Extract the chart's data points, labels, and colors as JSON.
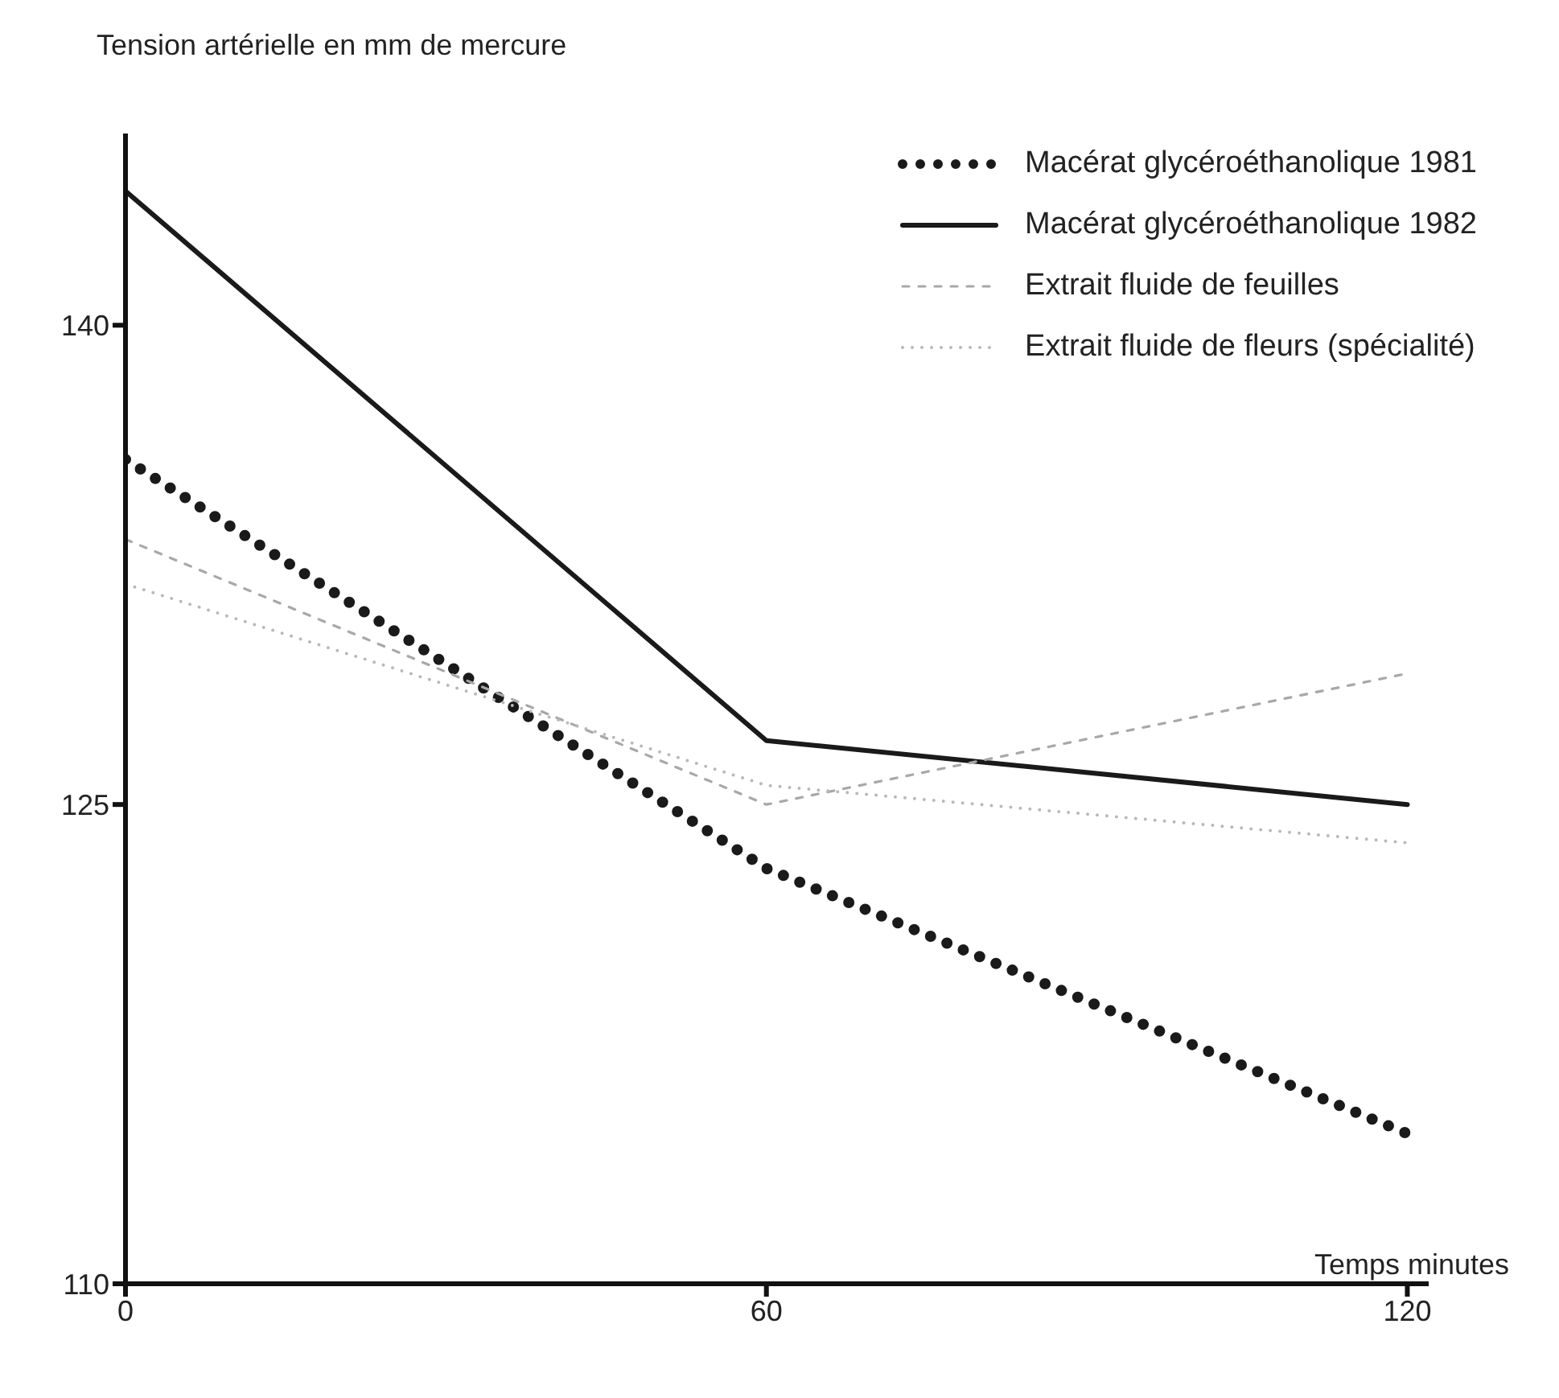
{
  "chart_data": {
    "type": "line",
    "xlabel": "Temps minutes",
    "ylabel": "Tension artérielle en mm de mercure",
    "x": [
      0,
      60,
      120
    ],
    "series": [
      {
        "name": "Macérat glycéroéthanolique 1981",
        "color": "#1a1a1a",
        "line_style": "dotted",
        "values": [
          135.8,
          123.0,
          114.7
        ]
      },
      {
        "name": "Macérat glycéroéthanolique 1982",
        "color": "#1a1a1a",
        "line_style": "solid",
        "values": [
          144.2,
          127.0,
          125.0
        ]
      },
      {
        "name": "Extrait fluide de feuilles",
        "color": "#a8a8a8",
        "line_style": "dashed",
        "values": [
          133.3,
          125.0,
          129.1
        ]
      },
      {
        "name": "Extrait fluide de fleurs (spécialité)",
        "color": "#b8b8b8",
        "line_style": "dotted",
        "values": [
          131.9,
          125.6,
          123.8
        ]
      }
    ],
    "xlim": [
      0,
      122
    ],
    "xticks": [
      0,
      60,
      120
    ],
    "ylim": [
      110,
      146
    ],
    "yticks": [
      110,
      125,
      140
    ],
    "grid": false,
    "legend": "top right",
    "marker": "none"
  }
}
